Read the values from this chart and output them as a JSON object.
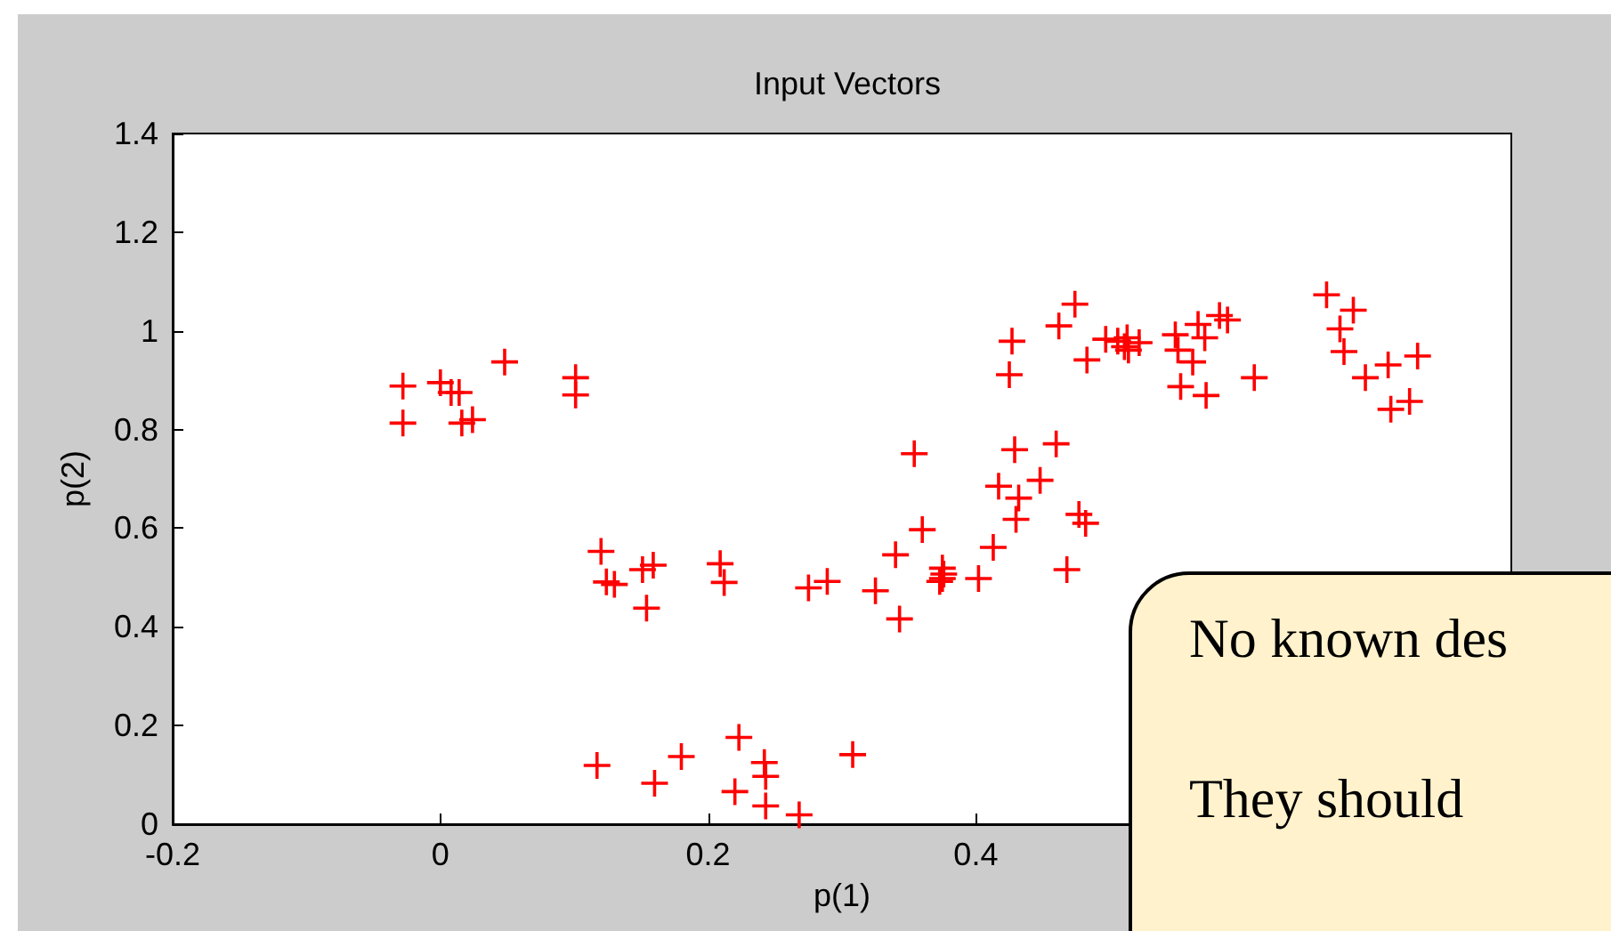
{
  "chart_data": {
    "type": "scatter",
    "title": "Input Vectors",
    "xlabel": "p(1)",
    "ylabel": "p(2)",
    "annotations": [
      "No known des",
      "They should"
    ],
    "xlim": [
      -0.2,
      0.8
    ],
    "ylim": [
      0,
      1.4
    ],
    "xticks": [
      -0.2,
      0,
      0.2,
      0.4
    ],
    "yticks": [
      0,
      0.2,
      0.4,
      0.6,
      0.8,
      1,
      1.2,
      1.4
    ],
    "marker": "cross",
    "grid": false,
    "series": [
      {
        "color": "#ff0000",
        "x": [
          -0.028,
          -0.028,
          0.0,
          0.008,
          0.014,
          0.016,
          0.024,
          0.048,
          0.101,
          0.101,
          0.12,
          0.124,
          0.13,
          0.151,
          0.159,
          0.154,
          0.209,
          0.212,
          0.275,
          0.289,
          0.325,
          0.34,
          0.36,
          0.343,
          0.375,
          0.375,
          0.373,
          0.376,
          0.402,
          0.413,
          0.43,
          0.468,
          0.477,
          0.482,
          0.117,
          0.16,
          0.18,
          0.223,
          0.22,
          0.242,
          0.243,
          0.243,
          0.268,
          0.308,
          0.354,
          0.429,
          0.46,
          0.417,
          0.432,
          0.448,
          0.427,
          0.425,
          0.462,
          0.474,
          0.483,
          0.497,
          0.506,
          0.513,
          0.514,
          0.522,
          0.511,
          0.549,
          0.551,
          0.562,
          0.566,
          0.571,
          0.582,
          0.588,
          0.553,
          0.572,
          0.608,
          0.662,
          0.682,
          0.672,
          0.675,
          0.691,
          0.708,
          0.73,
          0.71,
          0.724
        ],
        "values": [
          0.888,
          0.813,
          0.895,
          0.875,
          0.875,
          0.813,
          0.82,
          0.937,
          0.905,
          0.87,
          0.553,
          0.491,
          0.486,
          0.516,
          0.525,
          0.438,
          0.528,
          0.49,
          0.479,
          0.492,
          0.473,
          0.546,
          0.597,
          0.416,
          0.519,
          0.498,
          0.492,
          0.507,
          0.498,
          0.561,
          0.618,
          0.516,
          0.628,
          0.61,
          0.119,
          0.083,
          0.137,
          0.176,
          0.066,
          0.125,
          0.097,
          0.037,
          0.019,
          0.141,
          0.751,
          0.759,
          0.771,
          0.685,
          0.661,
          0.697,
          0.979,
          0.911,
          1.01,
          1.054,
          0.941,
          0.983,
          0.979,
          0.986,
          0.961,
          0.976,
          0.968,
          0.992,
          0.961,
          0.937,
          1.013,
          0.986,
          1.031,
          1.022,
          0.887,
          0.869,
          0.905,
          1.073,
          1.042,
          1.004,
          0.958,
          0.905,
          0.931,
          0.949,
          0.841,
          0.857
        ]
      }
    ]
  }
}
